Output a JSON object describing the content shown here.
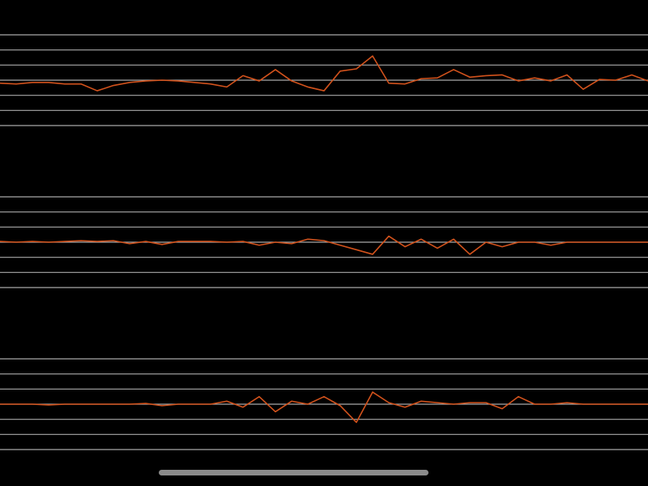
{
  "chart_data": [
    {
      "type": "line",
      "x": [
        0,
        1,
        2,
        3,
        4,
        5,
        6,
        7,
        8,
        9,
        10,
        11,
        12,
        13,
        14,
        15,
        16,
        17,
        18,
        19,
        20,
        21,
        22,
        23,
        24,
        25,
        26,
        27,
        28,
        29,
        30,
        31,
        32,
        33,
        34,
        35,
        36,
        37,
        38,
        39,
        40
      ],
      "xlim": [
        0,
        40
      ],
      "values": [
        -0.2,
        -0.25,
        -0.15,
        -0.15,
        -0.25,
        -0.25,
        -0.7,
        -0.35,
        -0.15,
        -0.05,
        0,
        -0.05,
        -0.15,
        -0.25,
        -0.45,
        0.3,
        -0.05,
        0.7,
        -0.05,
        -0.45,
        -0.7,
        0.6,
        0.75,
        1.6,
        -0.2,
        -0.25,
        0.1,
        0.15,
        0.7,
        0.2,
        0.3,
        0.35,
        -0.05,
        0.15,
        -0.05,
        0.35,
        -0.6,
        0.05,
        0,
        0.35,
        -0.05
      ],
      "color": "#d2521c",
      "ylim": [
        -3,
        3
      ],
      "yticks": [
        -3,
        -2,
        -1,
        0,
        1,
        2,
        3
      ],
      "grid": true
    },
    {
      "type": "line",
      "x": [
        0,
        1,
        2,
        3,
        4,
        5,
        6,
        7,
        8,
        9,
        10,
        11,
        12,
        13,
        14,
        15,
        16,
        17,
        18,
        19,
        20,
        21,
        22,
        23,
        24,
        25,
        26,
        27,
        28,
        29,
        30,
        31,
        32,
        33,
        34,
        35,
        36,
        37,
        38,
        39,
        40
      ],
      "xlim": [
        0,
        40
      ],
      "values": [
        0.05,
        0,
        0.05,
        0,
        0.05,
        0.1,
        0.05,
        0.1,
        -0.1,
        0.05,
        -0.15,
        0.05,
        0.05,
        0.05,
        0,
        0.05,
        -0.2,
        0,
        -0.1,
        0.2,
        0.1,
        -0.2,
        -0.5,
        -0.8,
        0.4,
        -0.3,
        0.2,
        -0.4,
        0.2,
        -0.8,
        0,
        -0.3,
        0,
        0,
        -0.2,
        0,
        0,
        0,
        0,
        0,
        0
      ],
      "color": "#d2521c",
      "ylim": [
        -3,
        3
      ],
      "yticks": [
        -3,
        -2,
        -1,
        0,
        1,
        2,
        3
      ],
      "grid": true
    },
    {
      "type": "line",
      "x": [
        0,
        1,
        2,
        3,
        4,
        5,
        6,
        7,
        8,
        9,
        10,
        11,
        12,
        13,
        14,
        15,
        16,
        17,
        18,
        19,
        20,
        21,
        22,
        23,
        24,
        25,
        26,
        27,
        28,
        29,
        30,
        31,
        32,
        33,
        34,
        35,
        36,
        37,
        38,
        39,
        40
      ],
      "xlim": [
        0,
        40
      ],
      "values": [
        0,
        0,
        0,
        -0.05,
        0,
        0,
        0,
        0,
        0,
        0.05,
        -0.1,
        0,
        0,
        0,
        0.2,
        -0.2,
        0.5,
        -0.5,
        0.2,
        0,
        0.5,
        -0.1,
        -1.2,
        0.8,
        0.1,
        -0.2,
        0.2,
        0.1,
        0,
        0.1,
        0.1,
        -0.3,
        0.5,
        0,
        0,
        0.1,
        0,
        0,
        0,
        0,
        0
      ],
      "color": "#d2521c",
      "ylim": [
        -3,
        3
      ],
      "yticks": [
        -3,
        -2,
        -1,
        0,
        1,
        2,
        3
      ],
      "grid": true
    }
  ]
}
